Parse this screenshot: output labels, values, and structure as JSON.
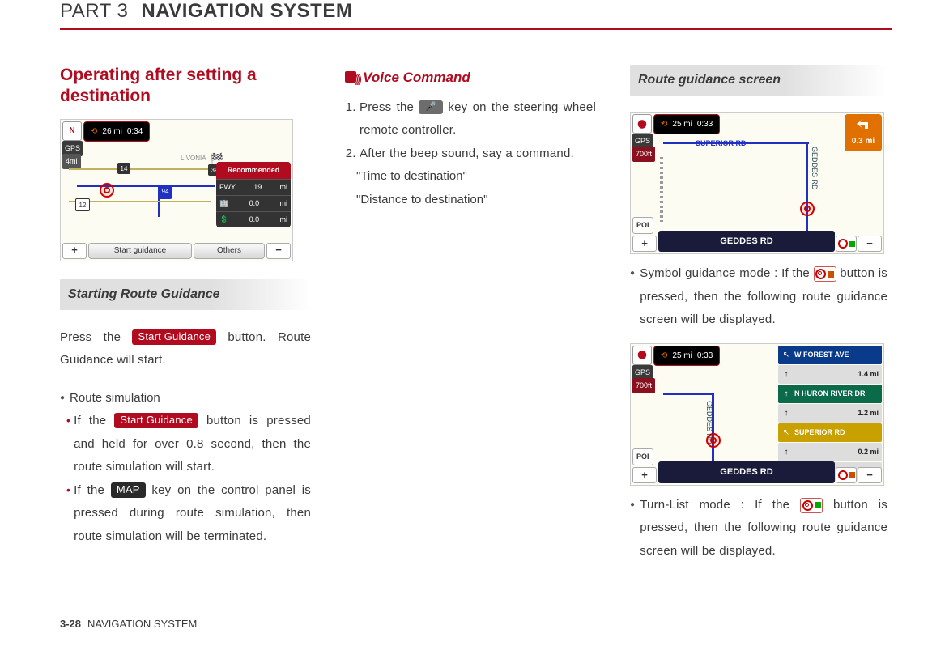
{
  "header": {
    "part": "PART 3",
    "title": "NAVIGATION SYSTEM"
  },
  "col1": {
    "heading": "Operating after setting a destination",
    "map1": {
      "distance": "26 mi",
      "time": "0:34",
      "scale": "4mi",
      "recommended_label": "Recommended",
      "rec_rows": [
        {
          "icon": "FWY",
          "v": "19",
          "u": "mi"
        },
        {
          "icon": "@",
          "v": "0.0",
          "u": "mi"
        },
        {
          "icon": "$",
          "v": "0.0",
          "u": "mi"
        }
      ],
      "btn_start": "Start guidance",
      "btn_others": "Others",
      "gps": "GPS"
    },
    "sub_heading": "Starting Route Guidance",
    "p1_a": "Press the ",
    "p1_btn": "Start Guidance",
    "p1_b": " button. Route Guidance will start.",
    "bullet1": "Route simulation",
    "sub1_a": "If the ",
    "sub1_btn": "Start Guidance",
    "sub1_b": " button is pressed and held for over 0.8  second, then the route simulation will start.",
    "sub2_a": "If the ",
    "sub2_btn": "MAP",
    "sub2_b": " key on the control panel is pressed during route simulation, then route simulation will be terminated."
  },
  "col2": {
    "voice_label": "Voice Command",
    "step1_a": "Press the ",
    "step1_key": "🎤",
    "step1_b": " key on the steering wheel remote controller.",
    "step2": "After the beep sound, say a command.",
    "q1": "\"Time to destination\"",
    "q2": "\"Distance to destination\""
  },
  "col3": {
    "sub_heading": "Route guidance screen",
    "map2": {
      "distance": "25 mi",
      "time": "0:33",
      "gps": "GPS",
      "scale": "700ft",
      "top_road": "SUPERIOR RD",
      "side_road": "GEDDES RD",
      "turn_dist": "0.3 mi",
      "bottom_road": "GEDDES RD",
      "poi": "POI"
    },
    "b1_a": "Symbol guidance mode : If the ",
    "b1_b": " button is pressed, then the following route guidance screen will be displayed.",
    "map3": {
      "distance": "25 mi",
      "time": "0:33",
      "gps": "GPS",
      "scale": "700ft",
      "side_road": "GEDDES RD",
      "bottom_road": "GEDDES RD",
      "poi": "POI",
      "list": [
        {
          "c": "#0a3a8a",
          "t": "W FOREST AVE",
          "d": "1.4 mi",
          "a": "↖"
        },
        {
          "c": "#0a6a4a",
          "t": "N HURON RIVER DR",
          "d": "1.2 mi",
          "a": "↑"
        },
        {
          "c": "#c8a000",
          "t": "SUPERIOR RD",
          "d": "0.2 mi",
          "a": "↖"
        }
      ]
    },
    "b2_a": "Turn-List mode : If the ",
    "b2_b": " button is pressed, then the following route guidance screen will be displayed."
  },
  "footer": {
    "page": "3-28",
    "label": "NAVIGATION SYSTEM"
  }
}
